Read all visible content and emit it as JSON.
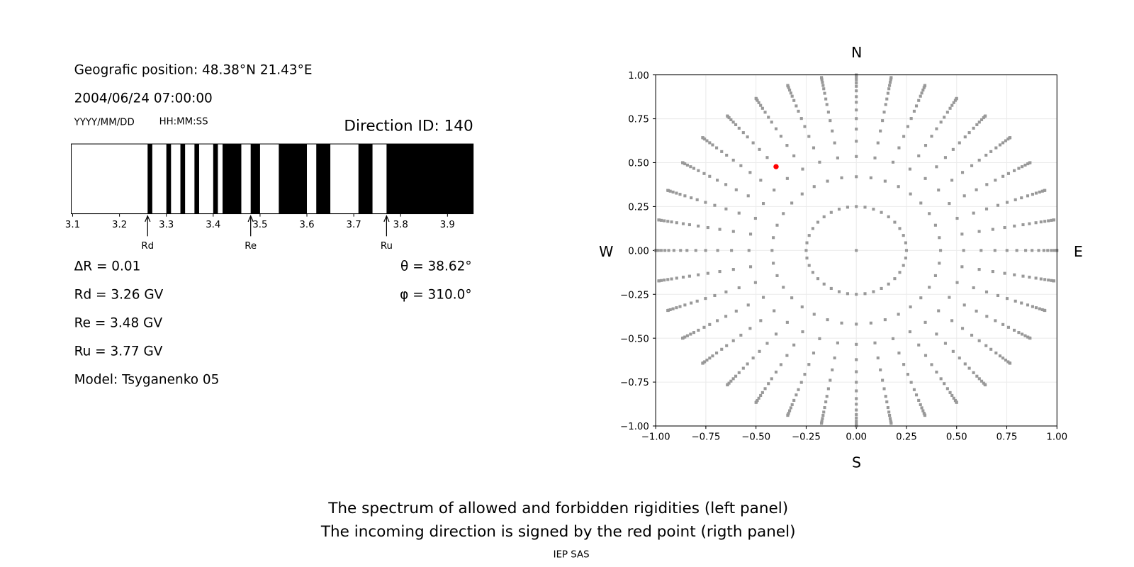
{
  "left_panel": {
    "position": "Geografic position: 48.38°N 21.43°E",
    "datetime": "2004/06/24 07:00:00",
    "date_format": "YYYY/MM/DD",
    "time_format": "HH:MM:SS",
    "direction_id": "Direction ID: 140",
    "delta_r": "ΔR = 0.01",
    "rd": "Rd = 3.26 GV",
    "re": "Re = 3.48 GV",
    "ru": "Ru = 3.77 GV",
    "model": "Model: Tsyganenko 05",
    "theta": "θ = 38.62°",
    "phi": "φ = 310.0°"
  },
  "chart_data": [
    {
      "type": "bar",
      "xlim": [
        3.097,
        3.955
      ],
      "xticks": [
        "3.1",
        "3.2",
        "3.3",
        "3.4",
        "3.5",
        "3.6",
        "3.7",
        "3.8",
        "3.9"
      ],
      "forbidden_bands": [
        [
          3.26,
          3.27
        ],
        [
          3.3,
          3.31
        ],
        [
          3.33,
          3.34
        ],
        [
          3.36,
          3.37
        ],
        [
          3.4,
          3.41
        ],
        [
          3.42,
          3.46
        ],
        [
          3.48,
          3.5
        ],
        [
          3.54,
          3.6
        ],
        [
          3.62,
          3.65
        ],
        [
          3.71,
          3.74
        ],
        [
          3.77,
          3.955
        ]
      ],
      "allowed_color": "#ffffff",
      "forbidden_color": "#000000",
      "markers": [
        {
          "label": "Rd",
          "value": 3.26
        },
        {
          "label": "Re",
          "value": 3.48
        },
        {
          "label": "Ru",
          "value": 3.77
        }
      ]
    },
    {
      "type": "scatter",
      "xlim": [
        -1,
        1
      ],
      "ylim": [
        -1,
        1
      ],
      "xticks": [
        "−1.00",
        "−0.75",
        "−0.50",
        "−0.25",
        "0.00",
        "0.25",
        "0.50",
        "0.75",
        "1.00"
      ],
      "yticks": [
        "−1.00",
        "−0.75",
        "−0.50",
        "−0.25",
        "0.00",
        "0.25",
        "0.50",
        "0.75",
        "1.00"
      ],
      "grid": true,
      "compass": {
        "north": "N",
        "south": "S",
        "west": "W",
        "east": "E"
      },
      "grid_points": {
        "azimuth_step_deg": 10,
        "radii": [
          0.25,
          0.42,
          0.535,
          0.622,
          0.691,
          0.751,
          0.8,
          0.844,
          0.876,
          0.909,
          0.935,
          0.954,
          0.972,
          0.987,
          0.997,
          1.0
        ],
        "center_point": [
          0,
          0
        ],
        "color": "#999999"
      },
      "incoming_direction": {
        "x": -0.4,
        "y": 0.477,
        "color": "#ff0000"
      }
    }
  ],
  "caption": {
    "line1": "The spectrum of allowed and forbidden rigidities (left panel)",
    "line2": "The incoming direction is signed by the red point (rigth panel)",
    "credit": "IEP SAS"
  }
}
